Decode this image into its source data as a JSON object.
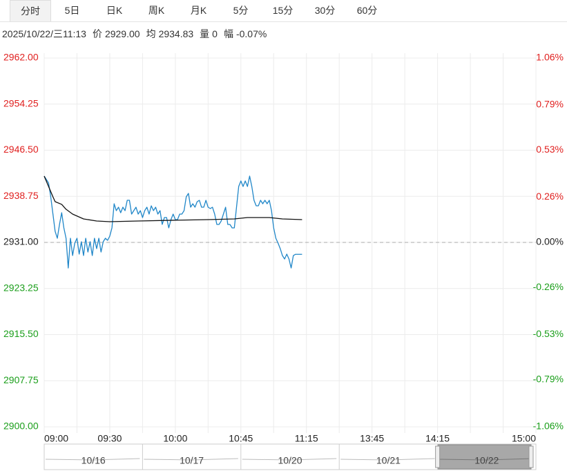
{
  "tabs": [
    "分时",
    "5日",
    "日K",
    "周K",
    "月K",
    "5分",
    "15分",
    "30分",
    "60分"
  ],
  "selected_tab": 0,
  "info": {
    "datetime": "2025/10/22/三11:13",
    "items": [
      {
        "label": "价",
        "value": "2929.00"
      },
      {
        "label": "均",
        "value": "2934.83"
      },
      {
        "label": "量",
        "value": "0"
      },
      {
        "label": "幅",
        "value": "-0.07%"
      }
    ]
  },
  "chart_data": {
    "type": "line",
    "up_color": "#e0201f",
    "down_color": "#1a9e1a",
    "flat_color": "#222222",
    "xlim": [
      0,
      225
    ],
    "xticks": [
      {
        "value": 0,
        "label": "09:00"
      },
      {
        "value": 15,
        "label": null
      },
      {
        "value": 30,
        "label": "09:30"
      },
      {
        "value": 45,
        "label": null
      },
      {
        "value": 60,
        "label": "10:00"
      },
      {
        "value": 75,
        "label": null
      },
      {
        "value": 90,
        "label": "10:45"
      },
      {
        "value": 105,
        "label": null
      },
      {
        "value": 120,
        "label": "11:15"
      },
      {
        "value": 135,
        "label": null
      },
      {
        "value": 150,
        "label": "13:45"
      },
      {
        "value": 165,
        "label": null
      },
      {
        "value": 180,
        "label": "14:15"
      },
      {
        "value": 195,
        "label": null
      },
      {
        "value": 210,
        "label": null
      },
      {
        "value": 225,
        "label": "15:00"
      }
    ],
    "ylim": [
      2900,
      2962
    ],
    "yticks": [
      {
        "value": 2962,
        "label": "2962.00"
      },
      {
        "value": 2954.25,
        "label": "2954.25"
      },
      {
        "value": 2946.5,
        "label": "2946.50"
      },
      {
        "value": 2938.75,
        "label": "2938.75"
      },
      {
        "value": 2931,
        "label": "2931.00"
      },
      {
        "value": 2923.25,
        "label": "2923.25"
      },
      {
        "value": 2915.5,
        "label": "2915.50"
      },
      {
        "value": 2907.75,
        "label": "2907.75"
      },
      {
        "value": 2900,
        "label": "2900.00"
      }
    ],
    "y2lim": [
      -1.06,
      1.06
    ],
    "y2ticks": [
      {
        "value": 1.06,
        "label": "1.06%"
      },
      {
        "value": 0.79,
        "label": "0.79%"
      },
      {
        "value": 0.53,
        "label": "0.53%"
      },
      {
        "value": 0.26,
        "label": "0.26%"
      },
      {
        "value": 0,
        "label": "0.00%"
      },
      {
        "value": -0.26,
        "label": "-0.26%"
      },
      {
        "value": -0.53,
        "label": "-0.53%"
      },
      {
        "value": -0.79,
        "label": "-0.79%"
      },
      {
        "value": -1.06,
        "label": "-1.06%"
      }
    ],
    "grid": true,
    "series": [
      {
        "color": "#1f86c8",
        "x": [
          0,
          1,
          2,
          3,
          4,
          5,
          6,
          7,
          8,
          9,
          10,
          11,
          12,
          13,
          14,
          15,
          16,
          17,
          18,
          19,
          20,
          21,
          22,
          23,
          24,
          25,
          26,
          27,
          28,
          29,
          30,
          31,
          32,
          33,
          34,
          35,
          36,
          37,
          38,
          39,
          40,
          41,
          42,
          43,
          44,
          45,
          46,
          47,
          48,
          49,
          50,
          51,
          52,
          53,
          54,
          55,
          56,
          57,
          58,
          59,
          60,
          61,
          62,
          63,
          64,
          65,
          66,
          67,
          68,
          69,
          70,
          71,
          72,
          73,
          74,
          75,
          76,
          77,
          78,
          79,
          80,
          81,
          82,
          83,
          84,
          85,
          86,
          87,
          88,
          89,
          90,
          91,
          92,
          93,
          94,
          95,
          96,
          97,
          98,
          99,
          100,
          101,
          102,
          103,
          104,
          105,
          106,
          107,
          108,
          109,
          110,
          111,
          112,
          113,
          114,
          115,
          116,
          117,
          118
        ],
        "values": [
          2942.15,
          2941.57,
          2940.99,
          2938.66,
          2935.76,
          2932.86,
          2931.7,
          2934.02,
          2935.99,
          2933.44,
          2931.7,
          2926.7,
          2931.7,
          2928.79,
          2930.88,
          2931.7,
          2929.03,
          2931.12,
          2928.79,
          2931.7,
          2929.38,
          2931.12,
          2928.79,
          2931.7,
          2929.96,
          2931.7,
          2929.38,
          2931.12,
          2931.7,
          2931.35,
          2932.05,
          2933.44,
          2937.5,
          2936.34,
          2936.92,
          2935.99,
          2936.92,
          2936.34,
          2938.08,
          2938.08,
          2935.76,
          2936.34,
          2936.92,
          2935.76,
          2936.34,
          2935.18,
          2936.34,
          2936.92,
          2935.76,
          2937.15,
          2936.34,
          2936.92,
          2935.76,
          2936.34,
          2934.02,
          2935.18,
          2935.18,
          2933.44,
          2934.83,
          2935.76,
          2934.83,
          2934.83,
          2935.76,
          2935.76,
          2936.34,
          2938.66,
          2939.24,
          2936.92,
          2937.5,
          2936.92,
          2937.85,
          2938.08,
          2936.92,
          2936.92,
          2938.08,
          2936.92,
          2936.69,
          2936.92,
          2935.76,
          2934.02,
          2934.02,
          2934.6,
          2935.76,
          2936.92,
          2934.02,
          2934.02,
          2933.44,
          2933.44,
          2936.92,
          2940.4,
          2941.33,
          2940.4,
          2941.33,
          2940.4,
          2942.15,
          2940.4,
          2938.08,
          2937.15,
          2937.15,
          2938.08,
          2937.5,
          2938.08,
          2937.5,
          2938.08,
          2936.34,
          2933.44,
          2931.7,
          2930.88,
          2929.96,
          2928.79,
          2928.21,
          2929.03,
          2928.21,
          2926.7,
          2928.79,
          2929.0,
          2929.0,
          2929.0,
          2929.0
        ]
      },
      {
        "color": "#111111",
        "x": [
          0,
          2,
          4,
          5,
          8,
          10,
          13,
          18,
          24,
          30,
          43,
          59,
          75,
          87,
          93,
          103,
          109,
          118
        ],
        "values": [
          2942.15,
          2940.4,
          2938.66,
          2937.85,
          2937.39,
          2936.57,
          2935.76,
          2934.95,
          2934.6,
          2934.48,
          2934.6,
          2934.72,
          2934.83,
          2934.95,
          2935.18,
          2935.18,
          2934.95,
          2934.83
        ]
      }
    ]
  },
  "navigator": {
    "dates": [
      "10/16",
      "10/17",
      "10/20",
      "10/21",
      "10/22"
    ]
  }
}
